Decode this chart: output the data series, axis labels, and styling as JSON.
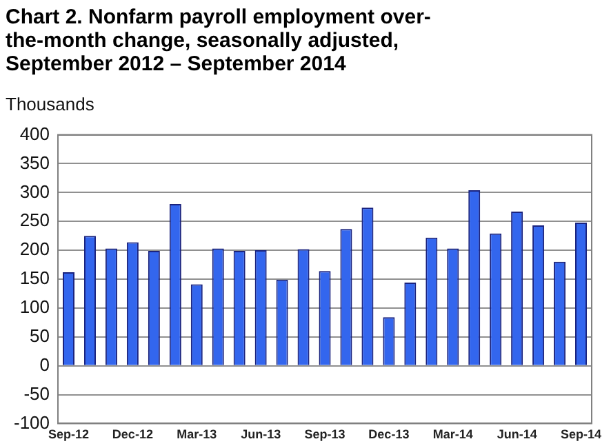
{
  "chart_data": {
    "type": "bar",
    "title": "Chart 2. Nonfarm payroll employment over-the-month change, seasonally adjusted, September 2012 – September 2014",
    "ylabel": "Thousands",
    "categories": [
      "Sep-12",
      null,
      null,
      "Dec-12",
      null,
      null,
      "Mar-13",
      null,
      null,
      "Jun-13",
      null,
      null,
      "Sep-13",
      null,
      null,
      "Dec-13",
      null,
      null,
      "Mar-14",
      null,
      null,
      "Jun-14",
      null,
      null,
      "Sep-14"
    ],
    "values": [
      162,
      225,
      203,
      214,
      199,
      280,
      141,
      203,
      199,
      200,
      149,
      202,
      164,
      237,
      274,
      84,
      144,
      222,
      203,
      304,
      229,
      267,
      243,
      180,
      248
    ],
    "color": "#3366ee",
    "ylim": [
      -100,
      400
    ],
    "yticks": [
      -100,
      -50,
      0,
      50,
      100,
      150,
      200,
      250,
      300,
      350,
      400
    ],
    "grid": "y",
    "legend": false
  }
}
